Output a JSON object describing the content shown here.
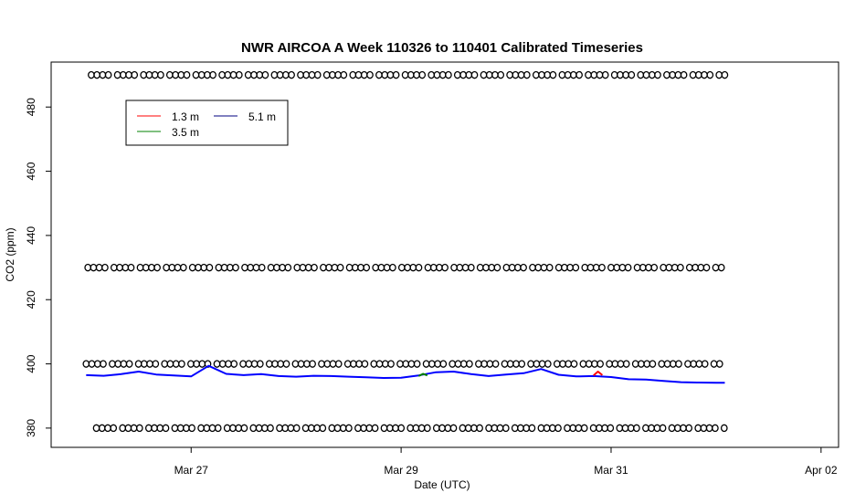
{
  "chart_data": {
    "type": "line",
    "title": "NWR AIRCOA A  Week 110326 to 110401  Calibrated Timeseries",
    "xlabel": "Date (UTC)",
    "ylabel": "CO2 (ppm)",
    "xlim": [
      "2011-03-25 16:00",
      "2011-04-02 04:00"
    ],
    "ylim": [
      374,
      494
    ],
    "x_ticks": [
      {
        "label": "Mar 27",
        "date": "2011-03-27 00:00"
      },
      {
        "label": "Mar 29",
        "date": "2011-03-29 00:00"
      },
      {
        "label": "Mar 31",
        "date": "2011-03-31 00:00"
      },
      {
        "label": "Apr 02",
        "date": "2011-04-02 00:00"
      }
    ],
    "y_ticks": [
      380,
      400,
      420,
      440,
      460,
      480
    ],
    "grid": false,
    "legend": {
      "position": "top-left",
      "entries": [
        {
          "name": "1.3 m",
          "color": "#ff0000"
        },
        {
          "name": "3.5 m",
          "color": "#008000"
        },
        {
          "name": "5.1 m",
          "color": "#000080"
        }
      ]
    },
    "series": [
      {
        "name": "5.1 m",
        "color": "#0000ff",
        "x": [
          "2011-03-26 00:00",
          "2011-03-26 04:00",
          "2011-03-26 08:00",
          "2011-03-26 12:00",
          "2011-03-26 16:00",
          "2011-03-26 20:00",
          "2011-03-27 00:00",
          "2011-03-27 04:00",
          "2011-03-27 08:00",
          "2011-03-27 12:00",
          "2011-03-27 16:00",
          "2011-03-27 20:00",
          "2011-03-28 00:00",
          "2011-03-28 04:00",
          "2011-03-28 08:00",
          "2011-03-28 12:00",
          "2011-03-28 16:00",
          "2011-03-28 20:00",
          "2011-03-29 00:00",
          "2011-03-29 04:00",
          "2011-03-29 08:00",
          "2011-03-29 12:00",
          "2011-03-29 16:00",
          "2011-03-29 20:00",
          "2011-03-30 00:00",
          "2011-03-30 04:00",
          "2011-03-30 08:00",
          "2011-03-30 12:00",
          "2011-03-30 16:00",
          "2011-03-30 20:00",
          "2011-03-31 00:00",
          "2011-03-31 04:00",
          "2011-03-31 08:00",
          "2011-03-31 12:00",
          "2011-03-31 16:00",
          "2011-03-31 20:00",
          "2011-04-01 00:00",
          "2011-04-01 02:00"
        ],
        "y": [
          396.5,
          396.3,
          396.8,
          397.6,
          396.7,
          396.4,
          396.1,
          399.4,
          396.9,
          396.5,
          396.8,
          396.2,
          396.0,
          396.3,
          396.2,
          396.0,
          395.8,
          395.6,
          395.7,
          396.4,
          397.4,
          397.6,
          396.8,
          396.2,
          396.7,
          397.1,
          398.4,
          396.6,
          396.1,
          396.2,
          395.9,
          395.2,
          395.1,
          394.7,
          394.3,
          394.2,
          394.1,
          394.1
        ]
      },
      {
        "name": "1.3 m",
        "color": "#ff0000",
        "x": [
          "2011-03-30 20:00",
          "2011-03-30 21:00",
          "2011-03-30 22:00"
        ],
        "y": [
          396.4,
          397.6,
          396.5
        ]
      },
      {
        "name": "3.5 m",
        "color": "#008000",
        "x": [
          "2011-03-29 04:00",
          "2011-03-29 05:00",
          "2011-03-29 06:00"
        ],
        "y": [
          396.2,
          396.9,
          396.4
        ]
      }
    ],
    "reference_markers": [
      {
        "y": 490,
        "marker": "open-circle"
      },
      {
        "y": 430,
        "marker": "open-circle"
      },
      {
        "y": 400,
        "marker": "open-circle"
      },
      {
        "y": 380,
        "marker": "open-circle"
      }
    ],
    "marker_x_range": [
      "2011-03-26 00:00",
      "2011-04-01 02:00"
    ]
  }
}
